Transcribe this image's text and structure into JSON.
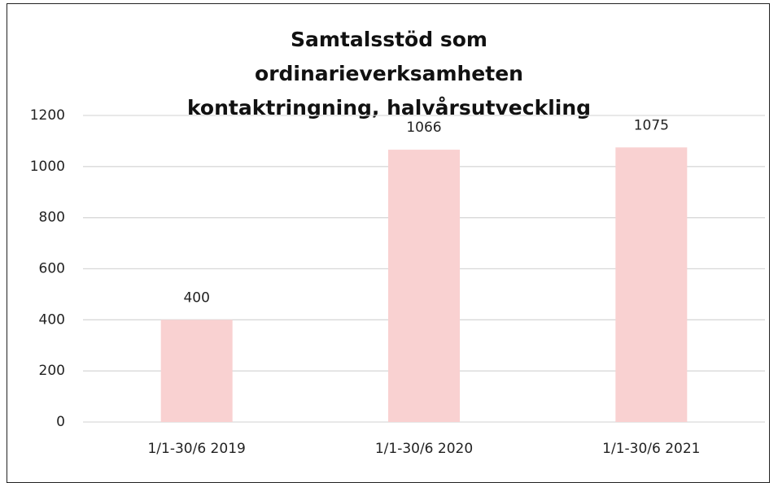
{
  "chart_data": {
    "type": "bar",
    "title": "Samtalsstöd som ordinarieverksamheten kontaktringning, halvårsutveckling",
    "categories": [
      "1/1-30/6 2019",
      "1/1-30/6 2020",
      "1/1-30/6 2021"
    ],
    "values": [
      400,
      1066,
      1075
    ],
    "color": "#f9d1d1",
    "ylim": [
      0,
      1200
    ],
    "yticks": [
      0,
      200,
      400,
      600,
      800,
      1000,
      1200
    ],
    "grid": true
  }
}
